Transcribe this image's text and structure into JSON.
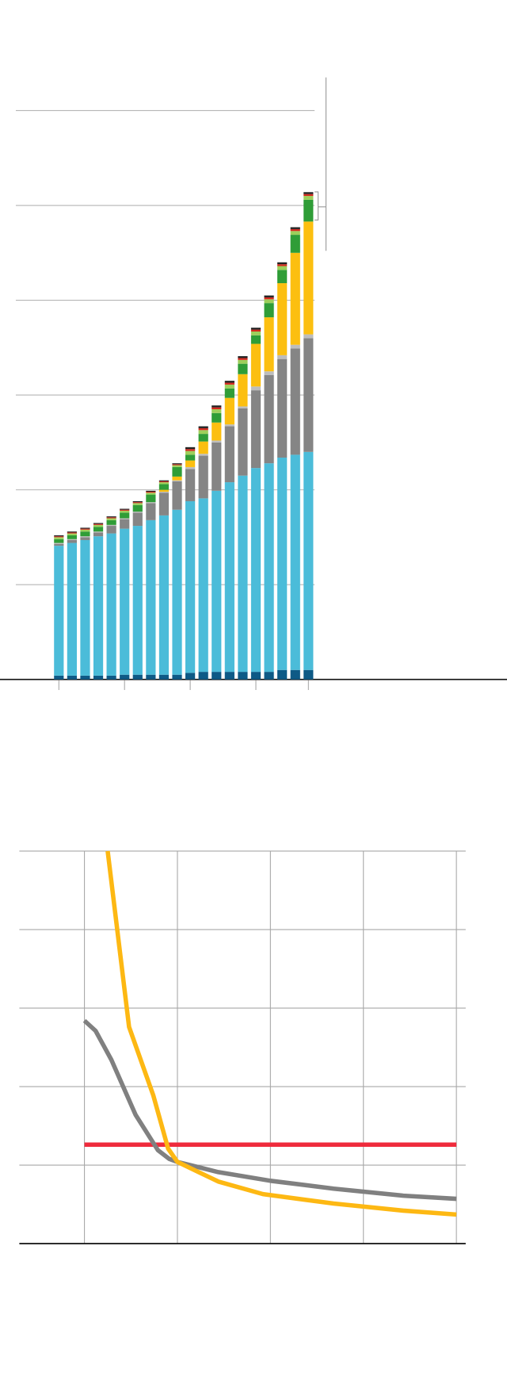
{
  "chart_data": [
    {
      "type": "bar",
      "stacked": true,
      "grid": true,
      "categories": [
        null,
        null,
        null,
        null,
        null,
        null,
        null,
        null,
        null,
        null,
        null,
        null,
        null,
        null,
        null,
        null,
        null,
        null,
        null,
        null
      ],
      "xticks": [
        0,
        5,
        10,
        15,
        19
      ],
      "ylim": [
        0,
        6.35
      ],
      "yticks": [
        0,
        1,
        2,
        3,
        4,
        5,
        6
      ],
      "series": [
        {
          "color": "#0e5a86",
          "values": [
            0.04,
            0.04,
            0.04,
            0.04,
            0.04,
            0.05,
            0.05,
            0.05,
            0.05,
            0.05,
            0.07,
            0.08,
            0.08,
            0.08,
            0.08,
            0.08,
            0.08,
            0.1,
            0.1,
            0.1
          ]
        },
        {
          "color": "#4bbcd9",
          "values": [
            1.37,
            1.4,
            1.43,
            1.47,
            1.5,
            1.54,
            1.57,
            1.63,
            1.68,
            1.74,
            1.81,
            1.83,
            1.91,
            2.0,
            2.07,
            2.15,
            2.2,
            2.24,
            2.27,
            2.3
          ]
        },
        {
          "color": "#858585",
          "values": [
            0.02,
            0.03,
            0.03,
            0.04,
            0.08,
            0.1,
            0.14,
            0.18,
            0.24,
            0.3,
            0.34,
            0.45,
            0.51,
            0.59,
            0.71,
            0.82,
            0.93,
            1.04,
            1.12,
            1.2
          ]
        },
        {
          "color": "#bdbdbd",
          "values": [
            0.01,
            0.01,
            0.01,
            0.01,
            0.01,
            0.01,
            0.01,
            0.01,
            0.01,
            0.01,
            0.02,
            0.02,
            0.02,
            0.02,
            0.02,
            0.04,
            0.04,
            0.04,
            0.04,
            0.04
          ]
        },
        {
          "color": "#fcbf10",
          "values": [
            0,
            0,
            0,
            0,
            0,
            0,
            0,
            0,
            0.02,
            0.04,
            0.07,
            0.13,
            0.19,
            0.28,
            0.34,
            0.45,
            0.57,
            0.76,
            0.97,
            1.19
          ]
        },
        {
          "color": "#2f9d37",
          "values": [
            0.04,
            0.04,
            0.05,
            0.05,
            0.05,
            0.06,
            0.07,
            0.08,
            0.06,
            0.1,
            0.06,
            0.08,
            0.1,
            0.1,
            0.11,
            0.09,
            0.15,
            0.14,
            0.19,
            0.23
          ]
        },
        {
          "color": "#9dcf5b",
          "values": [
            0.02,
            0.02,
            0.02,
            0.02,
            0.02,
            0.02,
            0.02,
            0.02,
            0.02,
            0.02,
            0.04,
            0.04,
            0.04,
            0.04,
            0.04,
            0.04,
            0.04,
            0.04,
            0.04,
            0.04
          ]
        },
        {
          "color": "#d42a1f",
          "values": [
            0.01,
            0.01,
            0.01,
            0.01,
            0.01,
            0.01,
            0.01,
            0.01,
            0.01,
            0.01,
            0.02,
            0.02,
            0.02,
            0.02,
            0.02,
            0.02,
            0.02,
            0.02,
            0.02,
            0.02
          ]
        },
        {
          "color": "#222222",
          "values": [
            0.01,
            0.01,
            0.01,
            0.01,
            0.01,
            0.01,
            0.01,
            0.01,
            0.01,
            0.01,
            0.02,
            0.02,
            0.02,
            0.02,
            0.02,
            0.02,
            0.02,
            0.02,
            0.02,
            0.02
          ]
        }
      ]
    },
    {
      "type": "line",
      "grid": true,
      "xlim": [
        -0.7,
        4.1
      ],
      "xticks": [
        0,
        1,
        2,
        3,
        4
      ],
      "ylim": [
        0,
        5
      ],
      "yticks": [
        0,
        1,
        2,
        3,
        4,
        5
      ],
      "series": [
        {
          "color": "#ef2b3c",
          "x": [
            0,
            4
          ],
          "values": [
            1.26,
            1.26
          ]
        },
        {
          "color": "#808080",
          "x": [
            0,
            0.12,
            0.29,
            0.55,
            0.79,
            0.91,
            1.0,
            1.44,
            2.0,
            2.68,
            3.43,
            4.0
          ],
          "values": [
            2.84,
            2.71,
            2.34,
            1.64,
            1.19,
            1.08,
            1.04,
            0.91,
            0.8,
            0.7,
            0.61,
            0.57
          ]
        },
        {
          "color": "#fdb813",
          "x": [
            0.25,
            0.48,
            0.74,
            0.9,
            1.0,
            1.44,
            1.92,
            2.68,
            3.43,
            4.0
          ],
          "values": [
            5.0,
            2.76,
            1.89,
            1.21,
            1.04,
            0.79,
            0.63,
            0.51,
            0.42,
            0.37
          ]
        }
      ]
    }
  ]
}
